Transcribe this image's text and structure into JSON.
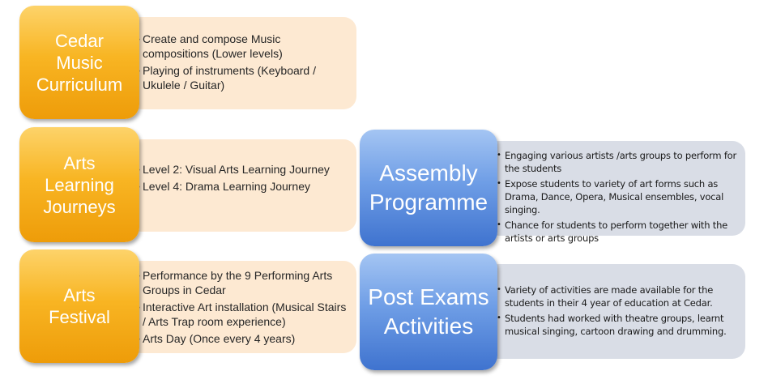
{
  "rows": [
    {
      "title_lines": [
        "Cedar",
        "Music",
        "Curriculum"
      ],
      "items": [
        "Create and compose Music compositions (Lower levels)",
        "Playing of instruments  (Keyboard / Ukulele / Guitar)"
      ]
    },
    {
      "title_lines": [
        "Arts",
        "Learning",
        "Journeys"
      ],
      "items": [
        "Level 2: Visual Arts Learning Journey",
        "Level 4: Drama Learning Journey"
      ]
    },
    {
      "title_lines": [
        "Arts",
        "Festival"
      ],
      "items": [
        "Performance by the 9 Performing Arts Groups in Cedar",
        "Interactive Art installation (Musical Stairs / Arts Trap room experience)",
        "Arts Day (Once every 4 years)"
      ]
    }
  ],
  "blue_rows": [
    {
      "title_lines": [
        "Assembly",
        "Programme"
      ],
      "items": [
        "Engaging various artists /arts groups to perform for the students",
        "Expose students to variety of art forms such as Drama, Dance, Opera, Musical ensembles, vocal singing.",
        "Chance for students to perform together with the artists or arts groups"
      ]
    },
    {
      "title_lines": [
        "Post Exams",
        "Activities"
      ],
      "items": [
        "Variety of activities are made available for the students in their 4 year of education at Cedar.",
        "Students had worked with theatre groups, learnt musical singing, cartoon drawing and drumming."
      ]
    }
  ],
  "bullets": {
    "orange": "•",
    "blue": "•"
  },
  "colors": {
    "orange_tile": "#f8b523",
    "orange_panel": "#fde9d2",
    "blue_tile": "#6f9ee6",
    "blue_panel": "#d9dde6"
  }
}
